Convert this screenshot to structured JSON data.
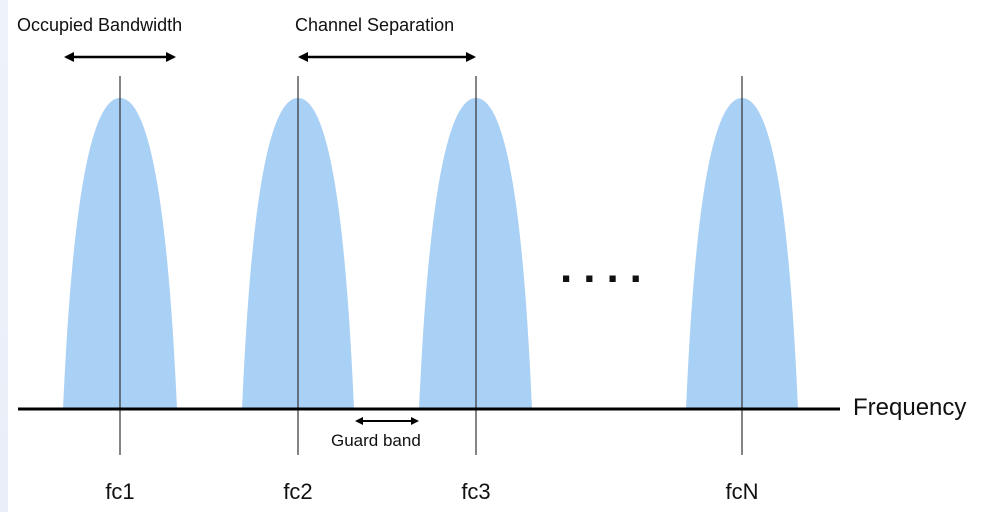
{
  "colors": {
    "lobe_fill": "#a9d0f5",
    "line": "#000000",
    "background": "#ffffff"
  },
  "labels": {
    "occupied_bandwidth": "Occupied Bandwidth",
    "channel_separation": "Channel Separation",
    "guard_band": "Guard band",
    "frequency": "Frequency",
    "ellipsis": "....",
    "fc1": "fc1",
    "fc2": "fc2",
    "fc3": "fc3",
    "fcN": "fcN"
  }
}
